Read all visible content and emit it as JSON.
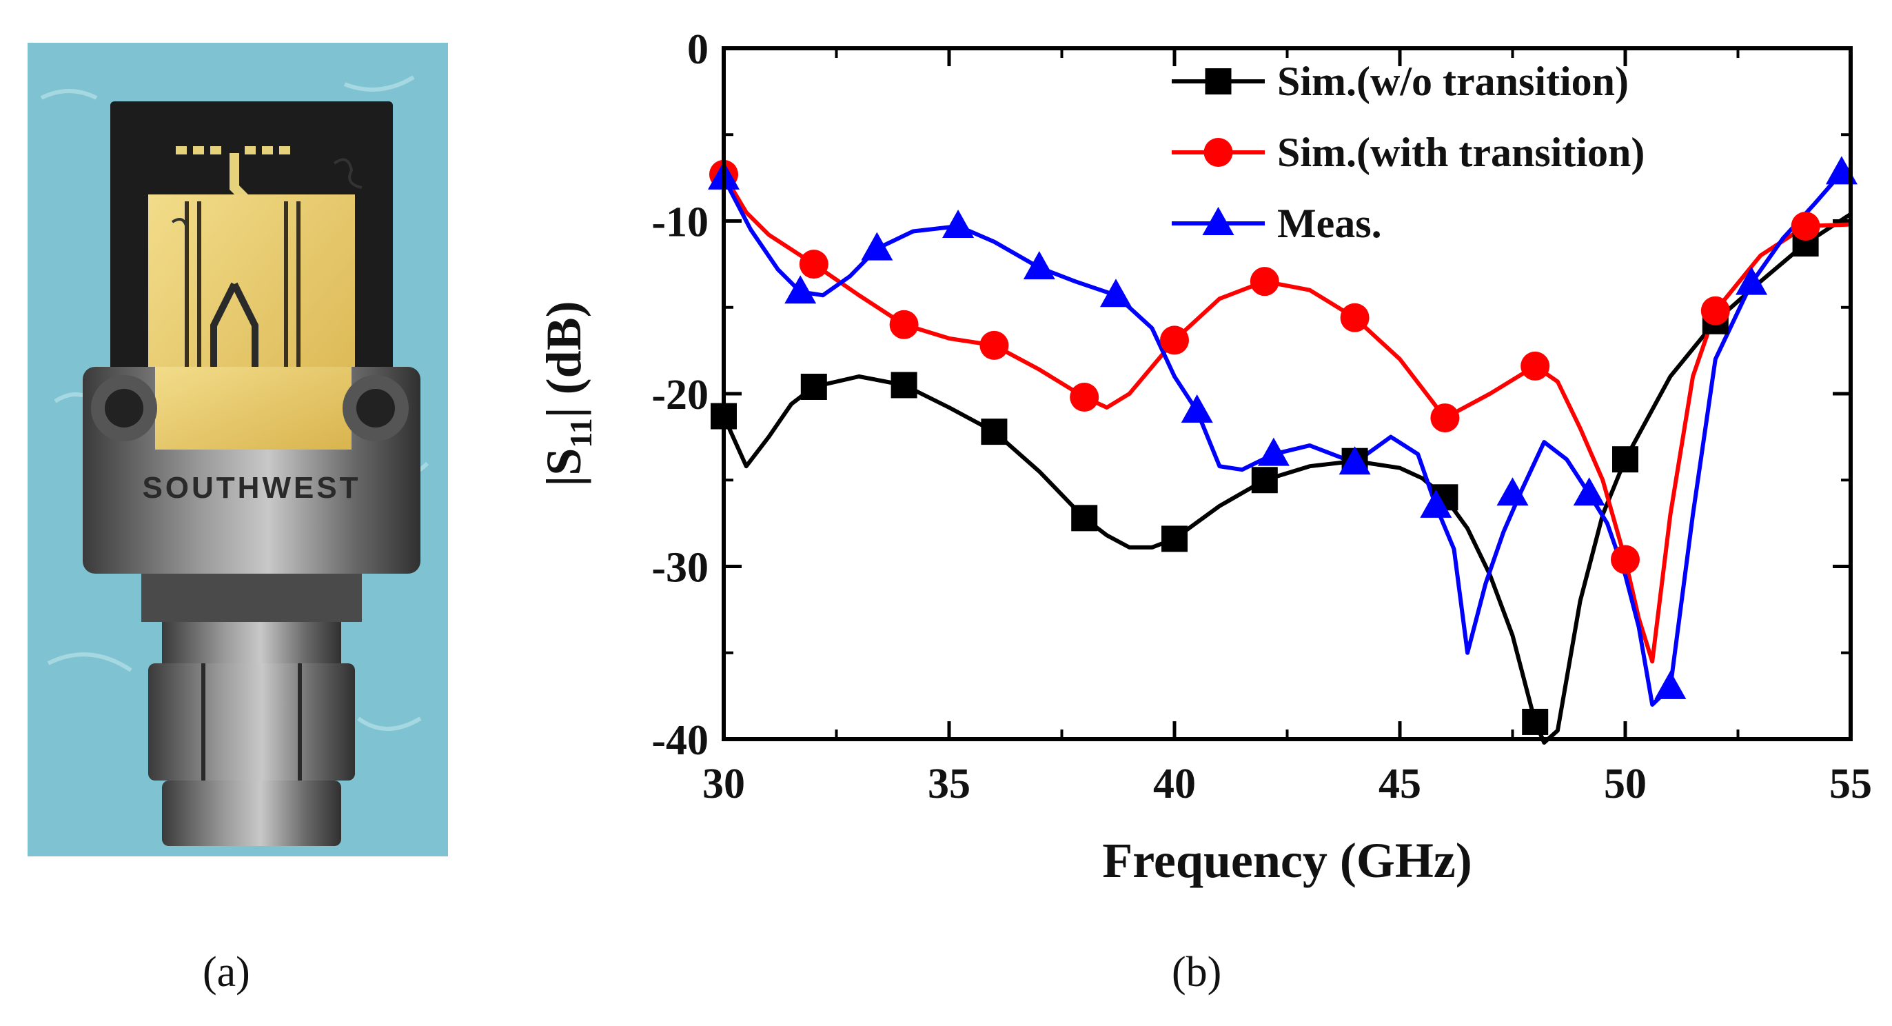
{
  "captions": {
    "a": "(a)",
    "b": "(b)"
  },
  "photo": {
    "engraved_text": "SOUTHWEST"
  },
  "colors": {
    "black": "#000000",
    "red": "#ff0000",
    "blue": "#0000ff",
    "background_photo": "#7fc3d2"
  },
  "chart_data": {
    "type": "line",
    "xlabel": "Frequency (GHz)",
    "ylabel_main": "|S",
    "ylabel_sub": "11",
    "ylabel_tail": "| (dB)",
    "xlim": [
      30,
      55
    ],
    "ylim": [
      -40,
      0
    ],
    "xticks": [
      30,
      35,
      40,
      45,
      50,
      55
    ],
    "xtick_labels": [
      "30",
      "35",
      "40",
      "45",
      "50",
      "55"
    ],
    "yticks": [
      0,
      -10,
      -20,
      -30,
      -40
    ],
    "ytick_labels": [
      "0",
      "-10",
      "-20",
      "-30",
      "-40"
    ],
    "legend_position": "top-right",
    "series": [
      {
        "name": "Sim.(w/o transition)",
        "color": "#000000",
        "marker": "square",
        "x": [
          30,
          30.5,
          31,
          31.5,
          32,
          33,
          34,
          35,
          36,
          37,
          38,
          38.5,
          39,
          39.5,
          40,
          41,
          42,
          43,
          44,
          45,
          45.5,
          46,
          46.5,
          47,
          47.5,
          48,
          48.2,
          48.5,
          49,
          49.5,
          50,
          51,
          52,
          53,
          54,
          55
        ],
        "y": [
          -21.3,
          -24.2,
          -22.5,
          -20.6,
          -19.6,
          -19.0,
          -19.5,
          -20.8,
          -22.2,
          -24.5,
          -27.2,
          -28.2,
          -28.9,
          -28.9,
          -28.4,
          -26.5,
          -25.0,
          -24.2,
          -23.9,
          -24.3,
          -24.9,
          -26.0,
          -27.8,
          -30.5,
          -34.0,
          -39.0,
          -40.2,
          -39.5,
          -32.0,
          -27.0,
          -23.8,
          -19.0,
          -15.8,
          -13.5,
          -11.3,
          -9.6
        ],
        "marker_x": [
          30,
          32,
          34,
          36,
          38,
          40,
          42,
          44,
          46,
          48,
          50,
          52,
          54
        ],
        "marker_y": [
          -21.3,
          -19.6,
          -19.5,
          -22.2,
          -27.2,
          -28.4,
          -25.0,
          -23.9,
          -26.0,
          -39.0,
          -23.8,
          -15.8,
          -11.3
        ]
      },
      {
        "name": "Sim.(with transition)",
        "color": "#ff0000",
        "marker": "circle",
        "x": [
          30,
          30.5,
          31,
          32,
          33,
          34,
          35,
          36,
          37,
          38,
          38.5,
          39,
          40,
          41,
          42,
          43,
          44,
          45,
          46,
          47,
          48,
          48.5,
          49,
          49.5,
          50,
          50.3,
          50.6,
          51,
          51.5,
          52,
          53,
          54,
          55
        ],
        "y": [
          -7.3,
          -9.5,
          -10.8,
          -12.5,
          -14.3,
          -16.0,
          -16.8,
          -17.2,
          -18.6,
          -20.2,
          -20.8,
          -20.0,
          -16.9,
          -14.5,
          -13.5,
          -14.0,
          -15.6,
          -18.0,
          -21.4,
          -20.0,
          -18.4,
          -19.3,
          -22.0,
          -25.0,
          -29.6,
          -33.0,
          -35.5,
          -27.0,
          -19.0,
          -15.2,
          -12.0,
          -10.3,
          -10.2
        ],
        "marker_x": [
          30,
          32,
          34,
          36,
          38,
          40,
          42,
          44,
          46,
          48,
          50,
          52,
          54
        ],
        "marker_y": [
          -7.3,
          -12.5,
          -16.0,
          -17.2,
          -20.2,
          -16.9,
          -13.5,
          -15.6,
          -21.4,
          -18.4,
          -29.6,
          -15.2,
          -10.3
        ]
      },
      {
        "name": "Meas.",
        "color": "#0000ff",
        "marker": "triangle",
        "x": [
          30,
          30.6,
          31.2,
          31.7,
          32.2,
          32.8,
          33.4,
          34.2,
          35.2,
          36.0,
          37.0,
          37.8,
          38.7,
          39.5,
          40.0,
          40.5,
          41.0,
          41.5,
          42.2,
          43.0,
          44.0,
          44.8,
          45.4,
          45.8,
          46.2,
          46.5,
          46.9,
          47.3,
          47.7,
          48.2,
          48.7,
          49.2,
          49.6,
          50.0,
          50.3,
          50.6,
          51.0,
          51.5,
          52.0,
          52.8,
          53.5,
          54.2,
          54.8,
          55
        ],
        "y": [
          -7.5,
          -10.5,
          -12.8,
          -14.1,
          -14.3,
          -13.2,
          -11.6,
          -10.6,
          -10.3,
          -11.2,
          -12.7,
          -13.5,
          -14.3,
          -16.2,
          -19.0,
          -21.0,
          -24.2,
          -24.4,
          -23.5,
          -23.0,
          -24.0,
          -22.5,
          -23.5,
          -26.5,
          -29.0,
          -35.0,
          -31.0,
          -28.0,
          -25.6,
          -22.8,
          -23.8,
          -25.8,
          -27.5,
          -30.5,
          -33.5,
          -38.0,
          -37.0,
          -27.0,
          -18.0,
          -13.6,
          -11.0,
          -9.0,
          -7.2,
          -7.0
        ],
        "marker_x": [
          30,
          31.7,
          33.4,
          35.2,
          37.0,
          38.7,
          40.5,
          42.2,
          44.0,
          45.8,
          47.5,
          49.2,
          51.0,
          52.8,
          54.8
        ],
        "marker_y": [
          -7.5,
          -14.1,
          -11.6,
          -10.3,
          -12.7,
          -14.3,
          -21.0,
          -23.5,
          -24.0,
          -26.5,
          -25.8,
          -25.8,
          -37.0,
          -13.6,
          -7.2
        ]
      }
    ]
  }
}
